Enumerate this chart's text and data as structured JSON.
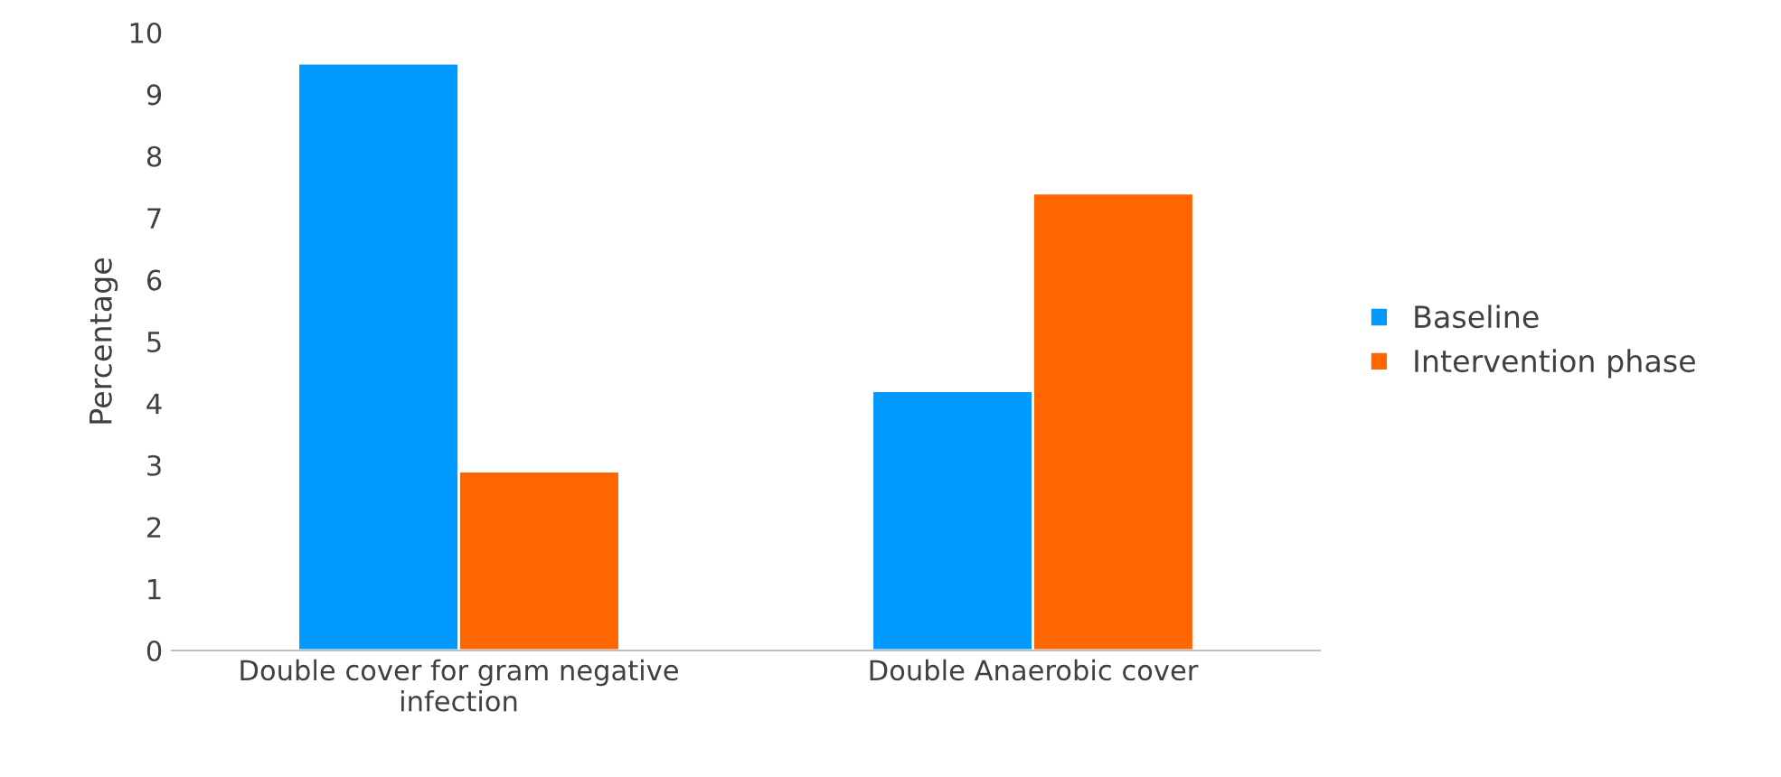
{
  "chart_data": {
    "type": "bar",
    "ylabel": "Percentage",
    "categories": [
      "Double cover for gram negative\ninfection",
      "Double Anaerobic cover"
    ],
    "series": [
      {
        "name": "Baseline",
        "color": "#0099ff",
        "values": [
          9.5,
          4.2
        ]
      },
      {
        "name": "Intervention phase",
        "color": "#ff6600",
        "values": [
          2.9,
          7.4
        ]
      }
    ],
    "ylim": [
      0,
      10
    ],
    "yticks": [
      0,
      1,
      2,
      3,
      4,
      5,
      6,
      7,
      8,
      9,
      10
    ],
    "grid": false,
    "legend": "right"
  }
}
